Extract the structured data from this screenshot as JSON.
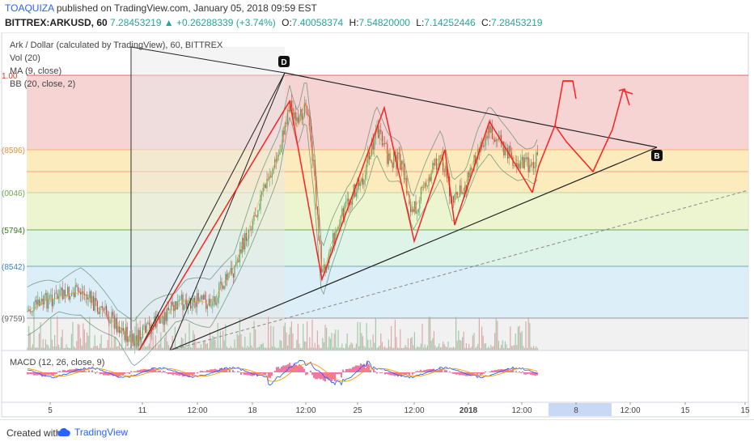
{
  "header": {
    "author": "TOAQUIZA",
    "published_text": "published on TradingView.com, January 05, 2018 09:59 EST",
    "symbol": "BITTREX:ARKUSD, 60",
    "last": "7.28453219",
    "change": "▲ +0.26288339 (+3.74%)",
    "open_label": "O:",
    "open": "7.40058374",
    "high_label": "H:",
    "high": "7.54820000",
    "low_label": "L:",
    "low": "7.14252446",
    "close_label": "C:",
    "close": "7.28453219"
  },
  "legend": {
    "title": "Ark / Dollar (calculated by TradingView), 60, BITTREX",
    "vol": "Vol (20)",
    "ma": "MA (9, close)",
    "bb": "BB (20, close, 2)",
    "macd": "MACD (12, 26, close, 9)"
  },
  "footer": {
    "created_with": "Created with",
    "brand": "TradingView"
  },
  "chart_data": {
    "type": "line",
    "fib_zones": [
      {
        "label": "1.00",
        "color": "#f4cccc"
      },
      {
        "label": "(8596)",
        "color": "#fce8b2"
      },
      {
        "label": "(0046)",
        "color": "#eaf3c8"
      },
      {
        "label": "(5794)",
        "color": "#d9f2e4"
      },
      {
        "label": "(8542)",
        "color": "#d6ecf7"
      },
      {
        "label": "(9759)",
        "color": "#eeeeee"
      }
    ],
    "x_tick_labels": [
      "5",
      "11",
      "12:00",
      "18",
      "12:00",
      "25",
      "12:00",
      "2018",
      "12:00",
      "8",
      "12:00",
      "15",
      "15"
    ],
    "pattern_labels": [
      "D",
      "B"
    ],
    "red_projection": [
      {
        "x": 62.0,
        "y": 20.5
      },
      {
        "x": 66.0,
        "y": 9.5
      },
      {
        "x": 71.5,
        "y": 16.0
      },
      {
        "x": 75.0,
        "y": 4.8
      },
      {
        "x": 78.5,
        "y": 14.0
      },
      {
        "x": 83.0,
        "y": 7.6
      },
      {
        "x": 85.0,
        "y": 11.0
      },
      {
        "x": 88.5,
        "y": 8.2
      },
      {
        "x": 89.6,
        "y": 9.2
      },
      {
        "x": 91.0,
        "y": 10.0
      },
      {
        "x": 94.0,
        "y": 3.0
      },
      {
        "x": 98.0,
        "y": 7.5
      },
      {
        "x": 101.0,
        "y": 1.5
      }
    ],
    "colors": {
      "candle_up": "#5ba56b",
      "candle_down": "#c0504d",
      "red_path": "#ff2020",
      "triangle": "#222222",
      "bb": "#5a8a6a",
      "macd_line": "#2962ff",
      "signal_line": "#ff9800",
      "hist": "#e91e63"
    }
  }
}
